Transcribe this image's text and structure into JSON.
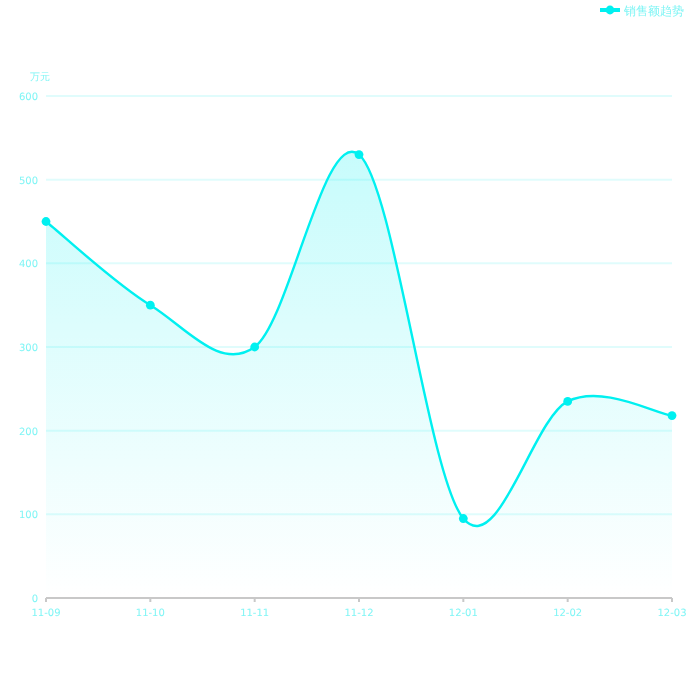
{
  "chart_data": {
    "type": "area",
    "ylabel": "万元",
    "categories": [
      "11-09",
      "11-10",
      "11-11",
      "11-12",
      "12-01",
      "12-02",
      "12-03"
    ],
    "series": [
      {
        "name": "销售额趋势",
        "color": "#00f0f0",
        "values": [
          450,
          350,
          300,
          530,
          95,
          235,
          218
        ]
      }
    ],
    "ylim": [
      0,
      600
    ],
    "yticks": [
      0,
      100,
      200,
      300,
      400,
      500,
      600
    ],
    "grid": "y",
    "legend": "top right",
    "marker": "circle"
  }
}
